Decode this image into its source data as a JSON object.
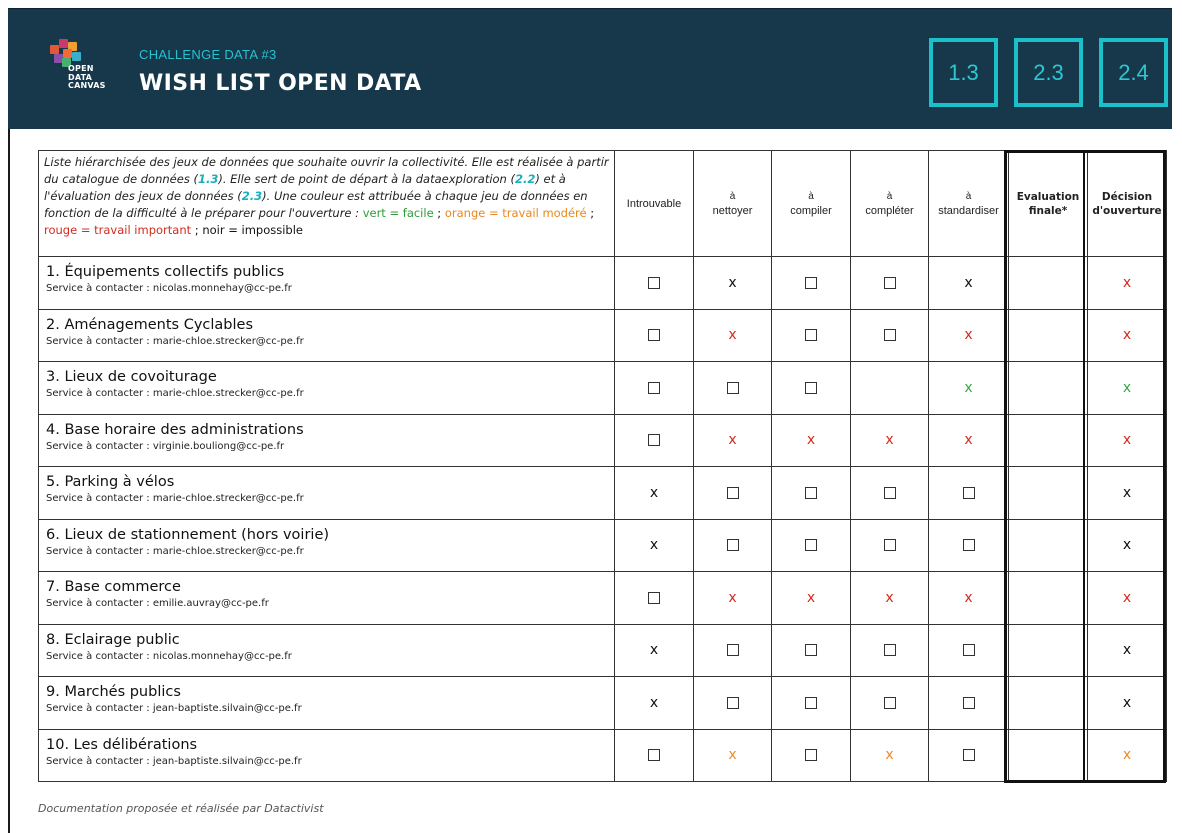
{
  "header": {
    "logo_lines": [
      "OPEN",
      "DATA",
      "CANVAS"
    ],
    "kicker": "CHALLENGE DATA #3",
    "title": "WISH LIST OPEN DATA",
    "badges": [
      "1.3",
      "2.3",
      "2.4"
    ],
    "background_color": "#16384a",
    "accent_color": "#1cc0c8"
  },
  "intro": {
    "part1": "Liste hiérarchisée des jeux de données que souhaite ouvrir la collectivité. Elle est réalisée à partir du catalogue de données (",
    "ref1": "1.3",
    "part2": "). Elle sert de point de départ à la dataexploration (",
    "ref2": "2.2",
    "part3": ") et à l'évaluation des jeux de données (",
    "ref3": "2.3",
    "part4": "). Une couleur est attribuée à chaque jeu de données en fonction de la difficulté à le préparer pour l'ouverture : ",
    "legend_green": "vert = facile",
    "sep1": " ; ",
    "legend_orange": "orange = travail modéré",
    "sep2": " ; ",
    "legend_red": "rouge = travail important",
    "sep3": " ; ",
    "legend_black": "noir = impossible"
  },
  "columns": [
    {
      "top": "",
      "label": "Introuvable"
    },
    {
      "top": "à",
      "label": "nettoyer"
    },
    {
      "top": "à",
      "label": "compiler"
    },
    {
      "top": "à",
      "label": "compléter"
    },
    {
      "top": "à",
      "label": "standardiser"
    }
  ],
  "col_eval": {
    "line1": "Evaluation",
    "line2": "finale*"
  },
  "col_decision": {
    "line1": "Décision",
    "line2": "d'ouverture"
  },
  "colors": {
    "black": "#111111",
    "red": "#d42b1e",
    "green": "#3aa546",
    "orange": "#ee8a25"
  },
  "rows": [
    {
      "title": "1. Équipements collectifs publics",
      "contact": "Service à contacter : nicolas.monnehay@cc-pe.fr",
      "cells": [
        {
          "t": "box"
        },
        {
          "t": "x",
          "c": "black"
        },
        {
          "t": "box"
        },
        {
          "t": "box"
        },
        {
          "t": "x",
          "c": "black"
        }
      ],
      "eval": "",
      "decision": {
        "t": "x",
        "c": "red"
      }
    },
    {
      "title": "2. Aménagements Cyclables",
      "contact": "Service à contacter : marie-chloe.strecker@cc-pe.fr",
      "cells": [
        {
          "t": "box"
        },
        {
          "t": "x",
          "c": "red"
        },
        {
          "t": "box"
        },
        {
          "t": "box"
        },
        {
          "t": "x",
          "c": "red"
        }
      ],
      "eval": "",
      "decision": {
        "t": "x",
        "c": "red"
      }
    },
    {
      "title": "3. Lieux de covoiturage",
      "contact": "Service à contacter : marie-chloe.strecker@cc-pe.fr",
      "cells": [
        {
          "t": "box"
        },
        {
          "t": "box"
        },
        {
          "t": "box"
        },
        {
          "t": "empty"
        },
        {
          "t": "x",
          "c": "green"
        }
      ],
      "eval": "",
      "decision": {
        "t": "x",
        "c": "green"
      }
    },
    {
      "title": "4. Base horaire des administrations",
      "contact": "Service à contacter : virginie.bouliong@cc-pe.fr",
      "cells": [
        {
          "t": "box"
        },
        {
          "t": "x",
          "c": "red"
        },
        {
          "t": "x",
          "c": "red"
        },
        {
          "t": "x",
          "c": "red"
        },
        {
          "t": "x",
          "c": "red"
        }
      ],
      "eval": "",
      "decision": {
        "t": "x",
        "c": "red"
      }
    },
    {
      "title": "5. Parking à vélos",
      "contact": "Service à contacter : marie-chloe.strecker@cc-pe.fr",
      "cells": [
        {
          "t": "x",
          "c": "black"
        },
        {
          "t": "box"
        },
        {
          "t": "box"
        },
        {
          "t": "box"
        },
        {
          "t": "box"
        }
      ],
      "eval": "",
      "decision": {
        "t": "x",
        "c": "black"
      }
    },
    {
      "title": "6. Lieux de stationnement (hors voirie)",
      "contact": "Service à contacter :  marie-chloe.strecker@cc-pe.fr",
      "cells": [
        {
          "t": "x",
          "c": "black"
        },
        {
          "t": "box"
        },
        {
          "t": "box"
        },
        {
          "t": "box"
        },
        {
          "t": "box"
        }
      ],
      "eval": "",
      "decision": {
        "t": "x",
        "c": "black"
      }
    },
    {
      "title": "7. Base commerce",
      "contact": "Service à contacter : emilie.auvray@cc-pe.fr",
      "cells": [
        {
          "t": "box"
        },
        {
          "t": "x",
          "c": "red"
        },
        {
          "t": "x",
          "c": "red"
        },
        {
          "t": "x",
          "c": "red"
        },
        {
          "t": "x",
          "c": "red"
        }
      ],
      "eval": "",
      "decision": {
        "t": "x",
        "c": "red"
      }
    },
    {
      "title": "8. Eclairage public",
      "contact": "Service à contacter : nicolas.monnehay@cc-pe.fr",
      "cells": [
        {
          "t": "x",
          "c": "black"
        },
        {
          "t": "box"
        },
        {
          "t": "box"
        },
        {
          "t": "box"
        },
        {
          "t": "box"
        }
      ],
      "eval": "",
      "decision": {
        "t": "x",
        "c": "black"
      }
    },
    {
      "title": "9. Marchés publics",
      "contact": "Service à contacter : jean-baptiste.silvain@cc-pe.fr",
      "cells": [
        {
          "t": "x",
          "c": "black"
        },
        {
          "t": "box"
        },
        {
          "t": "box"
        },
        {
          "t": "box"
        },
        {
          "t": "box"
        }
      ],
      "eval": "",
      "decision": {
        "t": "x",
        "c": "black"
      }
    },
    {
      "title": "10. Les délibérations",
      "contact": "Service à contacter : jean-baptiste.silvain@cc-pe.fr",
      "cells": [
        {
          "t": "box"
        },
        {
          "t": "x",
          "c": "orange"
        },
        {
          "t": "box"
        },
        {
          "t": "x",
          "c": "orange"
        },
        {
          "t": "box"
        }
      ],
      "eval": "",
      "decision": {
        "t": "x",
        "c": "orange"
      }
    }
  ],
  "mark_text": "x",
  "footer": "Documentation proposée et réalisée par Datactivist"
}
